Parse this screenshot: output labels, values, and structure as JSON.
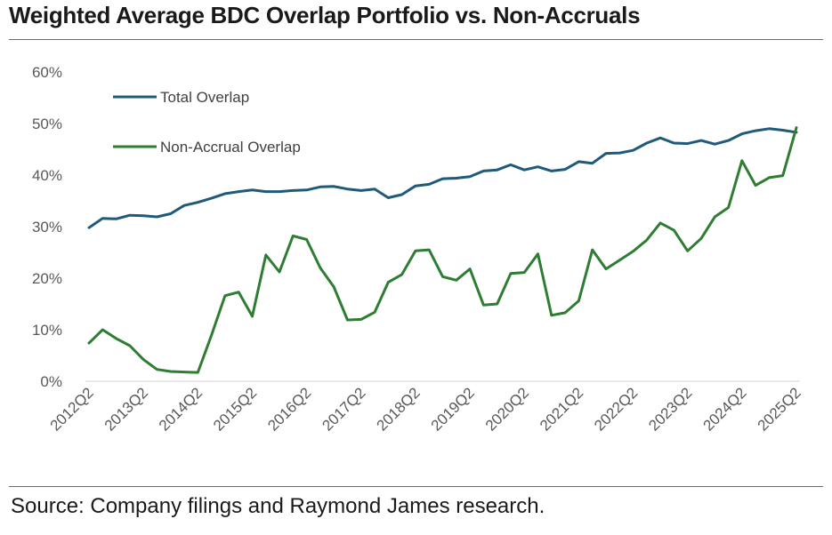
{
  "title": "Weighted Average BDC Overlap Portfolio vs. Non-Accruals",
  "source": "Source: Company filings and Raymond James research.",
  "chart_data": {
    "type": "line",
    "ylim": [
      0,
      60
    ],
    "y_ticks": [
      "0%",
      "10%",
      "20%",
      "30%",
      "40%",
      "50%",
      "60%"
    ],
    "y_tick_values": [
      0,
      10,
      20,
      30,
      40,
      50,
      60
    ],
    "x_tick_labels": [
      "2012Q2",
      "2013Q2",
      "2014Q2",
      "2015Q2",
      "2016Q2",
      "2017Q2",
      "2018Q2",
      "2019Q2",
      "2020Q2",
      "2021Q2",
      "2022Q2",
      "2023Q2",
      "2024Q2",
      "2025Q2"
    ],
    "x": [
      "2012Q2",
      "2012Q3",
      "2012Q4",
      "2013Q1",
      "2013Q2",
      "2013Q3",
      "2013Q4",
      "2014Q1",
      "2014Q2",
      "2014Q3",
      "2014Q4",
      "2015Q1",
      "2015Q2",
      "2015Q3",
      "2015Q4",
      "2016Q1",
      "2016Q2",
      "2016Q3",
      "2016Q4",
      "2017Q1",
      "2017Q2",
      "2017Q3",
      "2017Q4",
      "2018Q1",
      "2018Q2",
      "2018Q3",
      "2018Q4",
      "2019Q1",
      "2019Q2",
      "2019Q3",
      "2019Q4",
      "2020Q1",
      "2020Q2",
      "2020Q3",
      "2020Q4",
      "2021Q1",
      "2021Q2",
      "2021Q3",
      "2021Q4",
      "2022Q1",
      "2022Q2",
      "2022Q3",
      "2022Q4",
      "2023Q1",
      "2023Q2",
      "2023Q3",
      "2023Q4",
      "2024Q1",
      "2024Q2",
      "2024Q3",
      "2024Q4",
      "2025Q1",
      "2025Q2"
    ],
    "legend_position": "top-left",
    "grid": false,
    "series": [
      {
        "name": "Total Overlap",
        "color": "#1f5a7a",
        "values": [
          29.8,
          31.6,
          31.5,
          32.2,
          32.1,
          31.9,
          32.5,
          34.1,
          34.7,
          35.5,
          36.4,
          36.8,
          37.1,
          36.8,
          36.8,
          37.0,
          37.1,
          37.7,
          37.8,
          37.3,
          37.0,
          37.3,
          35.6,
          36.2,
          37.9,
          38.2,
          39.3,
          39.4,
          39.7,
          40.8,
          41.0,
          42.0,
          41.0,
          41.6,
          40.8,
          41.1,
          42.6,
          42.3,
          44.2,
          44.3,
          44.8,
          46.2,
          47.2,
          46.2,
          46.1,
          46.7,
          46.0,
          46.7,
          48.0,
          48.6,
          49.0,
          48.7,
          48.3
        ]
      },
      {
        "name": "Non-Accrual Overlap",
        "color": "#2e7d32",
        "values": [
          7.4,
          10.0,
          8.3,
          6.9,
          4.2,
          2.3,
          1.9,
          1.8,
          1.7,
          8.9,
          16.6,
          17.3,
          12.6,
          24.5,
          21.2,
          28.2,
          27.5,
          22.0,
          18.3,
          11.9,
          12.0,
          13.4,
          19.2,
          20.7,
          25.3,
          25.5,
          20.3,
          19.6,
          21.8,
          14.8,
          15.0,
          20.9,
          21.1,
          24.7,
          12.8,
          13.3,
          15.6,
          25.5,
          21.8,
          23.5,
          25.2,
          27.4,
          30.7,
          29.3,
          25.3,
          27.7,
          31.9,
          33.7,
          42.8,
          38.0,
          39.5,
          39.9,
          49.2
        ]
      }
    ]
  }
}
